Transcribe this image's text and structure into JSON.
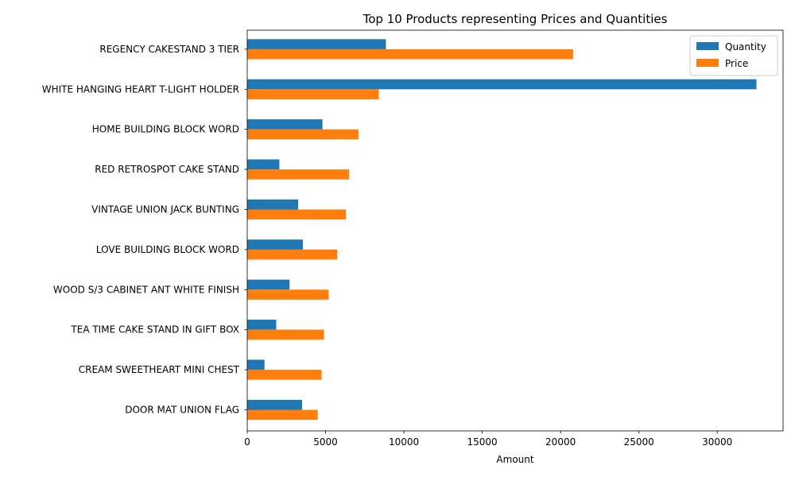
{
  "chart_data": {
    "type": "bar",
    "orientation": "horizontal",
    "title": "Top 10 Products representing Prices and Quantities",
    "xlabel": "Amount",
    "ylabel": "",
    "xlim": [
      0,
      34200
    ],
    "xticks": [
      0,
      5000,
      10000,
      15000,
      20000,
      25000,
      30000
    ],
    "grid": false,
    "legend_position": "top-right",
    "categories": [
      "REGENCY CAKESTAND 3 TIER",
      "WHITE HANGING HEART T-LIGHT HOLDER",
      "HOME BUILDING BLOCK WORD",
      "RED RETROSPOT CAKE STAND",
      "VINTAGE UNION JACK BUNTING",
      "LOVE BUILDING BLOCK WORD",
      "WOOD S/3 CABINET ANT WHITE FINISH",
      "TEA TIME CAKE STAND IN GIFT BOX",
      "CREAM SWEETHEART MINI CHEST",
      "DOOR MAT UNION FLAG"
    ],
    "series": [
      {
        "name": "Quantity",
        "color": "#1f77b4",
        "values": [
          8850,
          32500,
          4800,
          2050,
          3250,
          3550,
          2700,
          1850,
          1100,
          3500
        ]
      },
      {
        "name": "Price",
        "color": "#ff7f0e",
        "values": [
          20800,
          8400,
          7100,
          6500,
          6300,
          5750,
          5200,
          4900,
          4750,
          4500
        ]
      }
    ]
  }
}
